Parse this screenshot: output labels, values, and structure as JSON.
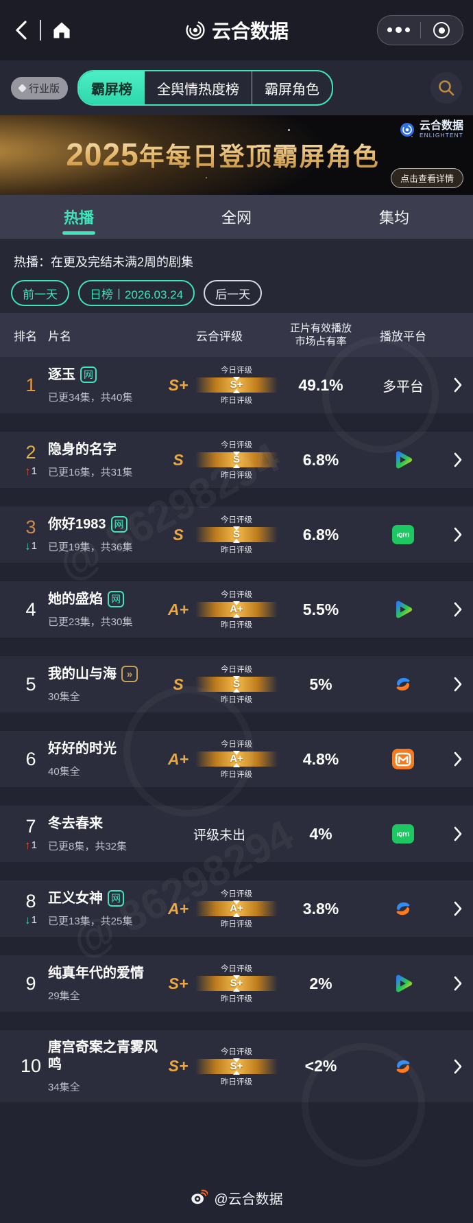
{
  "navbar": {
    "title": "云合数据",
    "back_icon": "chevron-left",
    "home_icon": "home",
    "more_icon": "three-dots",
    "capsule_icon": "target-circle"
  },
  "filter_bar": {
    "version_badge": "行业版",
    "tabs": [
      "霸屏榜",
      "全舆情热度榜",
      "霸屏角色"
    ],
    "active_index": 0,
    "search_icon": "magnifier"
  },
  "banner": {
    "year": "2025",
    "title_rest": "年每日登顶霸屏角色",
    "logo_cn": "云合数据",
    "logo_en": "ENLIGHTENT",
    "cta": "点击查看详情"
  },
  "view_tabs": {
    "tabs": [
      "热播",
      "全网",
      "集均"
    ],
    "active_index": 0
  },
  "subtitle": "热播：在更及完结未满2周的剧集",
  "date_nav": {
    "prev": "前一天",
    "current": "日榜丨2026.03.24",
    "next": "后一天"
  },
  "table_header": {
    "rank": "排名",
    "title": "片名",
    "rating": "云合评级",
    "share": [
      "正片有效播放",
      "市场占有率"
    ],
    "platform": "播放平台"
  },
  "rating_labels": {
    "today": "今日评级",
    "yesterday": "昨日评级"
  },
  "rows": [
    {
      "rank": "1",
      "title": "逐玉",
      "badge": "网",
      "episodes": "已更34集，共40集",
      "rating": "S+",
      "share": "49.1%",
      "platform": "multi",
      "platform_text": "多平台"
    },
    {
      "rank": "2",
      "change_dir": "up",
      "change_val": "1",
      "title": "隐身的名字",
      "episodes": "已更16集，共31集",
      "rating": "S",
      "share": "6.8%",
      "platform": "tencent"
    },
    {
      "rank": "3",
      "change_dir": "down",
      "change_val": "1",
      "title": "你好1983",
      "badge": "网",
      "episodes": "已更19集，共36集",
      "rating": "S",
      "share": "6.8%",
      "platform": "iqiyi"
    },
    {
      "rank": "4",
      "title": "她的盛焰",
      "badge": "网",
      "episodes": "已更23集，共30集",
      "rating": "A+",
      "share": "5.5%",
      "platform": "tencent"
    },
    {
      "rank": "5",
      "title": "我的山与海",
      "badge_icon": "fast-forward",
      "episodes": "30集全",
      "rating": "S",
      "share": "5%",
      "platform": "blueorange"
    },
    {
      "rank": "6",
      "title": "好好的时光",
      "episodes": "40集全",
      "rating": "A+",
      "share": "4.8%",
      "platform": "mango"
    },
    {
      "rank": "7",
      "change_dir": "up",
      "change_val": "1",
      "title": "冬去春来",
      "episodes": "已更8集，共32集",
      "rating_pending": "评级未出",
      "share": "4%",
      "platform": "iqiyi"
    },
    {
      "rank": "8",
      "change_dir": "down",
      "change_val": "1",
      "title": "正义女神",
      "badge": "网",
      "episodes": "已更13集，共25集",
      "rating": "A+",
      "share": "3.8%",
      "platform": "blueorange"
    },
    {
      "rank": "9",
      "title": "纯真年代的爱情",
      "episodes": "29集全",
      "rating": "S+",
      "share": "2%",
      "platform": "tencent"
    },
    {
      "rank": "10",
      "title": "唐宫奇案之青雾风鸣",
      "episodes": "34集全",
      "rating": "S+",
      "share": "<2%",
      "platform": "blueorange"
    }
  ],
  "watermarks": [
    "@ 86298294",
    "@ 86298294"
  ],
  "footer": {
    "weibo_handle": "@云合数据"
  },
  "colors": {
    "accent_teal": "#3fe4ba",
    "rating_gold": "#eda73f",
    "rank1": "#e79a3d",
    "rank2": "#ddb14e",
    "rank3": "#c98c56",
    "change_up": "#e55330",
    "change_down": "#3cd1ae",
    "iqiyi_green": "#1dc862",
    "mango_orange": "#f47b20"
  }
}
